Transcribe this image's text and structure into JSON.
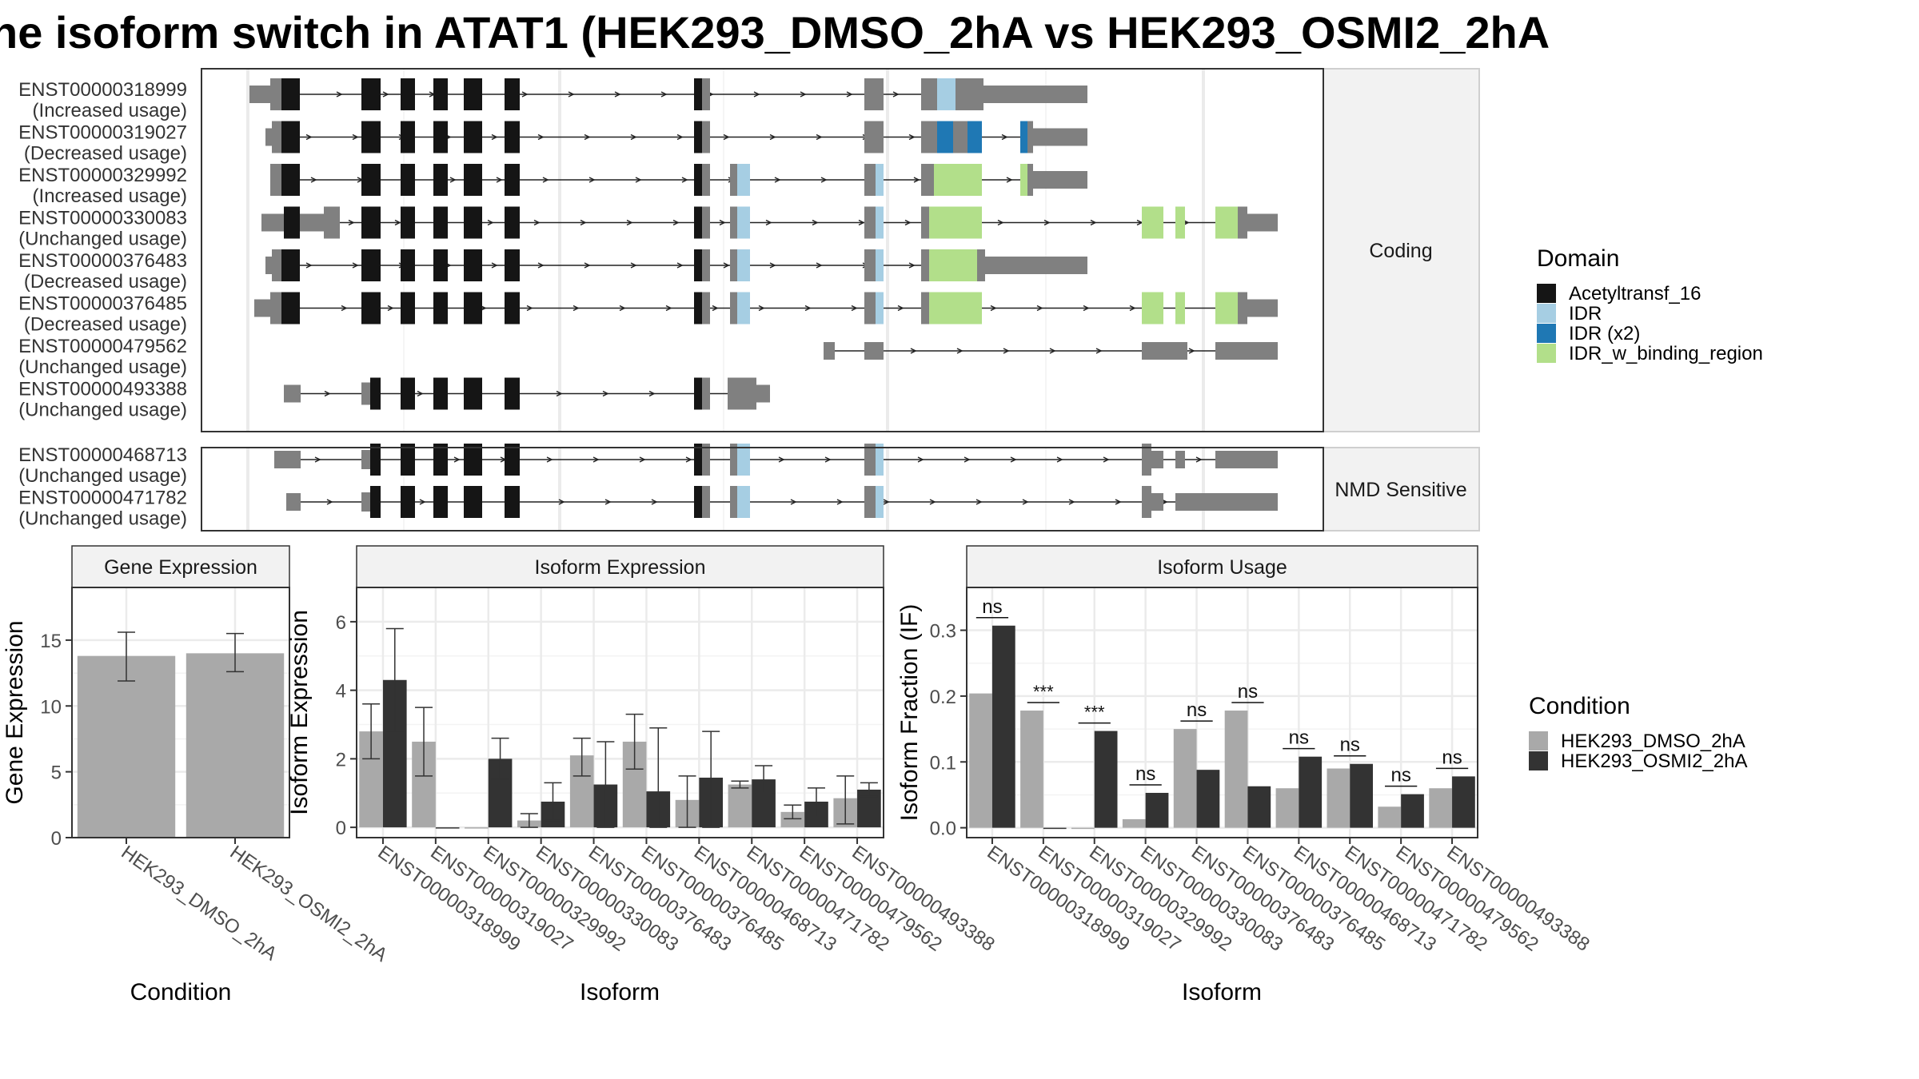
{
  "title": "ne isoform switch in ATAT1 (HEK293_DMSO_2hA vs HEK293_OSMI2_2hA",
  "colors": {
    "Acetyltransf_16": "#151515",
    "IDR": "#a6cee3",
    "IDR (x2)": "#1f78b4",
    "IDR_w_binding_region": "#b2df8a",
    "intron": "#222222",
    "exon_utr": "#808080",
    "dmso": "#a9a9a9",
    "osmi2": "#333333",
    "grid": "#ebebeb",
    "strip": "#f2f2f2"
  },
  "structure": {
    "facets": [
      "Coding",
      "NMD Sensitive"
    ],
    "coding": [
      {
        "id": "ENST00000318999",
        "status": "(Increased usage)"
      },
      {
        "id": "ENST00000319027",
        "status": "(Decreased usage)"
      },
      {
        "id": "ENST00000329992",
        "status": "(Increased usage)"
      },
      {
        "id": "ENST00000330083",
        "status": "(Unchanged usage)"
      },
      {
        "id": "ENST00000376483",
        "status": "(Decreased usage)"
      },
      {
        "id": "ENST00000376485",
        "status": "(Decreased usage)"
      },
      {
        "id": "ENST00000479562",
        "status": "(Unchanged usage)"
      },
      {
        "id": "ENST00000493388",
        "status": "(Unchanged usage)"
      }
    ],
    "nmd": [
      {
        "id": "ENST00000468713",
        "status": "(Unchanged usage)"
      },
      {
        "id": "ENST00000471782",
        "status": "(Unchanged usage)"
      }
    ]
  },
  "domain_legend": {
    "title": "Domain",
    "items": [
      "Acetyltransf_16",
      "IDR",
      "IDR (x2)",
      "IDR_w_binding_region"
    ]
  },
  "condition_legend": {
    "title": "Condition",
    "items": [
      "HEK293_DMSO_2hA",
      "HEK293_OSMI2_2hA"
    ]
  },
  "chart_data": [
    {
      "type": "bar",
      "title": "Gene Expression",
      "xlabel": "Condition",
      "ylabel": "Gene Expression",
      "ylim": [
        0,
        19
      ],
      "yticks": [
        0,
        5,
        10,
        15
      ],
      "categories": [
        "HEK293_DMSO_2hA",
        "HEK293_OSMI2_2hA"
      ],
      "values": [
        13.8,
        14.0
      ],
      "err_low": [
        11.9,
        12.6
      ],
      "err_high": [
        15.6,
        15.5
      ]
    },
    {
      "type": "bar",
      "title": "Isoform Expression",
      "xlabel": "Isoform",
      "ylabel": "Isoform Expression",
      "ylim": [
        -0.3,
        7.0
      ],
      "yticks": [
        0,
        2,
        4,
        6
      ],
      "categories": [
        "ENST00000318999",
        "ENST00000319027",
        "ENST00000329992",
        "ENST00000330083",
        "ENST00000376483",
        "ENST00000376485",
        "ENST00000468713",
        "ENST00000471782",
        "ENST00000479562",
        "ENST00000493388"
      ],
      "series": [
        {
          "name": "HEK293_DMSO_2hA",
          "values": [
            2.8,
            2.5,
            0.0,
            0.2,
            2.1,
            2.5,
            0.8,
            1.25,
            0.45,
            0.85
          ],
          "err_low": [
            2.0,
            1.5,
            0.0,
            0.0,
            1.5,
            1.7,
            0.0,
            1.15,
            0.25,
            0.1
          ],
          "err_high": [
            3.6,
            3.5,
            0.0,
            0.4,
            2.6,
            3.3,
            1.5,
            1.35,
            0.65,
            1.5
          ]
        },
        {
          "name": "HEK293_OSMI2_2hA",
          "values": [
            4.3,
            0.0,
            2.0,
            0.75,
            1.25,
            1.05,
            1.45,
            1.4,
            0.75,
            1.1
          ],
          "err_low": [
            2.8,
            0.0,
            1.4,
            0.2,
            0.0,
            0.0,
            0.0,
            1.0,
            0.3,
            0.9
          ],
          "err_high": [
            5.8,
            0.0,
            2.6,
            1.3,
            2.5,
            2.9,
            2.8,
            1.8,
            1.15,
            1.3
          ]
        }
      ]
    },
    {
      "type": "bar",
      "title": "Isoform Usage",
      "xlabel": "Isoform",
      "ylabel": "Isoform Fraction (IF)",
      "ylim": [
        -0.015,
        0.365
      ],
      "yticks": [
        0.0,
        0.1,
        0.2,
        0.3
      ],
      "ytick_labels": [
        "0.0",
        "0.1",
        "0.2",
        "0.3"
      ],
      "categories": [
        "ENST00000318999",
        "ENST00000319027",
        "ENST00000329992",
        "ENST00000330083",
        "ENST00000376483",
        "ENST00000376485",
        "ENST00000468713",
        "ENST00000471782",
        "ENST00000479562",
        "ENST00000493388"
      ],
      "series": [
        {
          "name": "HEK293_DMSO_2hA",
          "values": [
            0.204,
            0.178,
            0.0,
            0.013,
            0.15,
            0.178,
            0.06,
            0.09,
            0.032,
            0.06
          ]
        },
        {
          "name": "HEK293_OSMI2_2hA",
          "values": [
            0.307,
            0.0,
            0.147,
            0.053,
            0.088,
            0.063,
            0.108,
            0.097,
            0.051,
            0.078
          ]
        }
      ],
      "significance": [
        "ns",
        "***",
        "***",
        "ns",
        "ns",
        "ns",
        "ns",
        "ns",
        "ns",
        "ns"
      ]
    }
  ]
}
